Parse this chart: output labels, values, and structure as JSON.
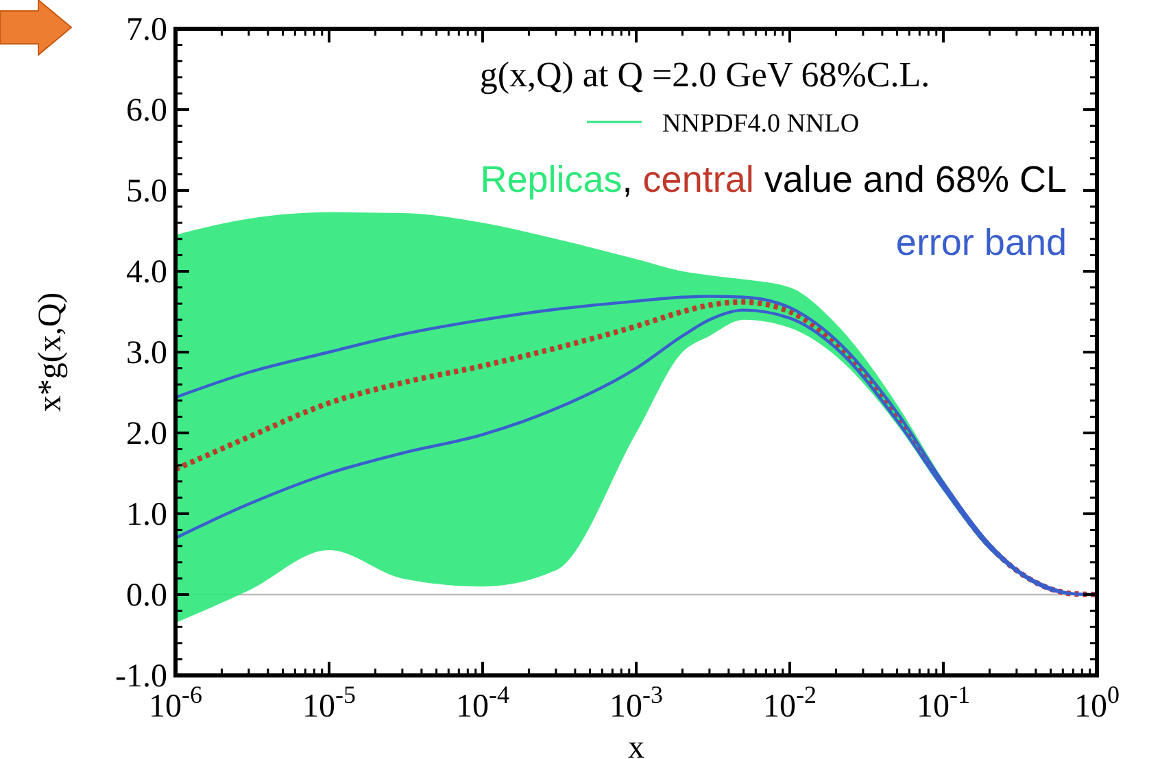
{
  "chart_data": {
    "type": "line",
    "title": "g(x,Q) at Q =2.0 GeV 68%C.L.",
    "xlabel": "x",
    "ylabel": "x*g(x,Q)",
    "annotations": [
      "Replicas",
      ", ",
      "central",
      " value and 68% CL",
      "error band"
    ],
    "x": [
      1e-06,
      3e-06,
      1e-05,
      3e-05,
      0.0001,
      0.0003,
      0.001,
      0.002,
      0.003,
      0.005,
      0.01,
      0.02,
      0.05,
      0.1,
      0.2,
      0.3,
      0.5,
      0.7,
      1
    ],
    "log": "x",
    "xlim": [
      1e-06,
      1
    ],
    "xticks": [
      {
        "value": 1e-06,
        "label": "10$^{-6}$"
      },
      {
        "value": 1e-05,
        "label": "10$^{-5}$"
      },
      {
        "value": 0.0001,
        "label": "10$^{-4}$"
      },
      {
        "value": 0.001,
        "label": "10$^{-3}$"
      },
      {
        "value": 0.01,
        "label": "10$^{-2}$"
      },
      {
        "value": 0.1,
        "label": "10$^{-1}$"
      },
      {
        "value": 1,
        "label": "10$^{0}$"
      }
    ],
    "ylim": [
      -1,
      7
    ],
    "yticks": [
      {
        "value": -1,
        "label": "-1.0"
      },
      {
        "value": 0,
        "label": "0.0"
      },
      {
        "value": 1,
        "label": "1.0"
      },
      {
        "value": 2,
        "label": "2.0"
      },
      {
        "value": 3,
        "label": "3.0"
      },
      {
        "value": 4,
        "label": "4.0"
      },
      {
        "value": 5,
        "label": "5.0"
      },
      {
        "value": 6,
        "label": "6.0"
      },
      {
        "value": 7,
        "label": "7.0"
      }
    ],
    "legend": "top right",
    "ref_lines": [
      {
        "axis": "y",
        "value": 0,
        "color": "#bbbbbb"
      }
    ],
    "series": [
      {
        "name": "NNPDF4.0 NNLO",
        "color": "#2ee87a",
        "line_style": "solid",
        "values": [
          1.55,
          1.95,
          2.37,
          2.62,
          2.83,
          3.05,
          3.32,
          3.5,
          3.58,
          3.62,
          3.5,
          3.1,
          2.2,
          1.35,
          0.6,
          0.3,
          null,
          null,
          null
        ],
        "lower": [
          -0.35,
          0.05,
          0.55,
          0.2,
          0.1,
          0.3,
          2.0,
          3.0,
          3.2,
          3.4,
          3.3,
          2.95,
          2.1,
          1.28,
          0.55,
          0.27,
          0.05,
          0,
          0
        ],
        "upper": [
          4.45,
          4.65,
          4.73,
          4.72,
          4.6,
          4.4,
          4.15,
          4.0,
          3.95,
          3.9,
          3.8,
          3.35,
          2.35,
          1.42,
          0.65,
          0.33,
          0.09,
          0.02,
          0
        ]
      },
      {
        "color": "#c0392b",
        "line_style": "dotted",
        "values": [
          1.55,
          1.95,
          2.37,
          2.62,
          2.83,
          3.05,
          3.32,
          3.5,
          3.58,
          3.62,
          3.5,
          3.1,
          2.2,
          1.35,
          0.6,
          0.3,
          0.07,
          0.01,
          0
        ]
      },
      {
        "color": "#3a5fcd",
        "line_style": "solid",
        "values": [
          2.44,
          2.75,
          3.0,
          3.22,
          3.4,
          3.53,
          3.63,
          3.68,
          3.69,
          3.68,
          3.55,
          3.15,
          2.25,
          1.38,
          0.62,
          0.31,
          0.08,
          0.01,
          0
        ]
      },
      {
        "color": "#3a5fcd",
        "line_style": "solid",
        "values": [
          0.7,
          1.12,
          1.5,
          1.75,
          1.98,
          2.3,
          2.8,
          3.2,
          3.4,
          3.52,
          3.42,
          3.05,
          2.15,
          1.32,
          0.58,
          0.29,
          0.06,
          0.01,
          0
        ]
      }
    ]
  }
}
